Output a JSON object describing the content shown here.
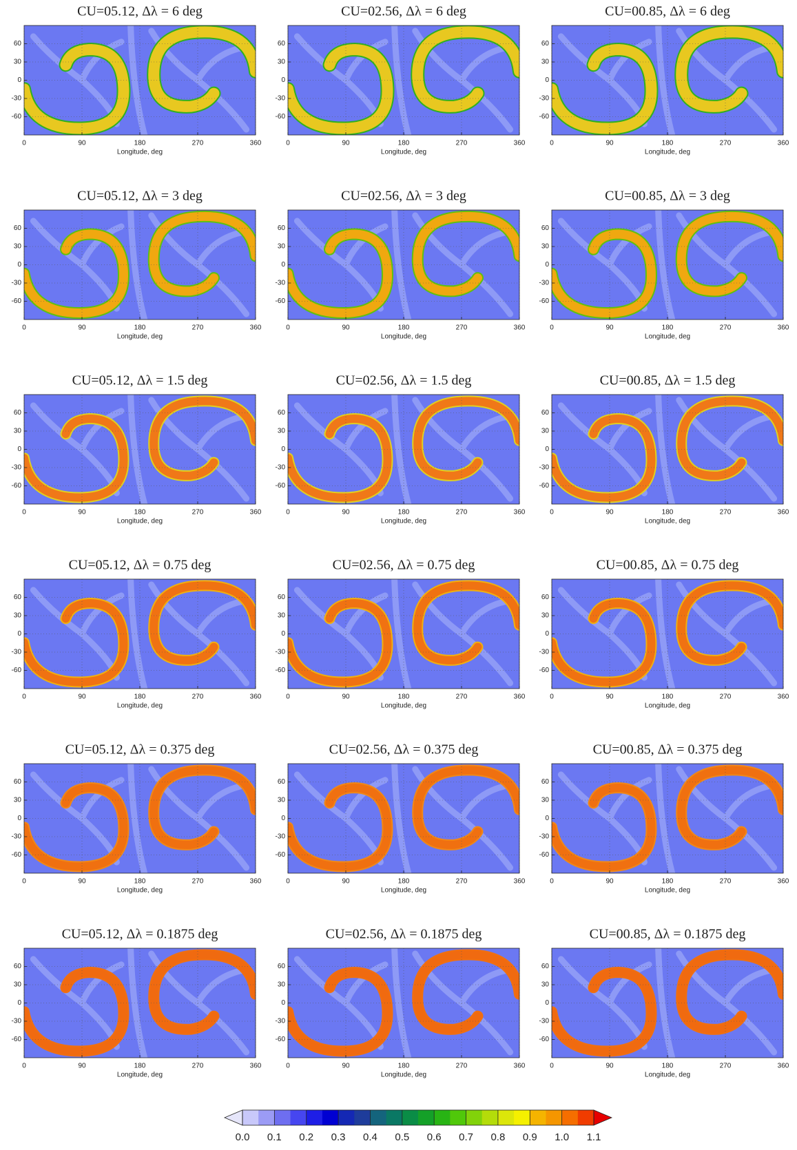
{
  "chart_data": [
    {
      "type": "heatmap",
      "title": "CU=05.12, Δλ = 6 deg",
      "xlabel": "Longitude, deg",
      "xlim": [
        0,
        360
      ],
      "xticks": [
        0,
        90,
        180,
        270,
        360
      ],
      "ylim": [
        -90,
        90
      ],
      "yticks": [
        -60,
        -30,
        0,
        30,
        60
      ],
      "grid": true
    },
    {
      "type": "heatmap",
      "title": "CU=02.56, Δλ = 6 deg",
      "xlabel": "Longitude, deg",
      "xlim": [
        0,
        360
      ],
      "xticks": [
        0,
        90,
        180,
        270,
        360
      ],
      "ylim": [
        -90,
        90
      ],
      "yticks": [
        -60,
        -30,
        0,
        30,
        60
      ],
      "grid": true
    },
    {
      "type": "heatmap",
      "title": "CU=00.85, Δλ = 6 deg",
      "xlabel": "Longitude, deg",
      "xlim": [
        0,
        360
      ],
      "xticks": [
        0,
        90,
        180,
        270,
        360
      ],
      "ylim": [
        -90,
        90
      ],
      "yticks": [
        -60,
        -30,
        0,
        30,
        60
      ],
      "grid": true
    },
    {
      "type": "heatmap",
      "title": "CU=05.12, Δλ = 3 deg",
      "xlabel": "Longitude, deg",
      "xlim": [
        0,
        360
      ],
      "xticks": [
        0,
        90,
        180,
        270,
        360
      ],
      "ylim": [
        -90,
        90
      ],
      "yticks": [
        -60,
        -30,
        0,
        30,
        60
      ],
      "grid": true
    },
    {
      "type": "heatmap",
      "title": "CU=02.56, Δλ = 3 deg",
      "xlabel": "Longitude, deg",
      "xlim": [
        0,
        360
      ],
      "xticks": [
        0,
        90,
        180,
        270,
        360
      ],
      "ylim": [
        -90,
        90
      ],
      "yticks": [
        -60,
        -30,
        0,
        30,
        60
      ],
      "grid": true
    },
    {
      "type": "heatmap",
      "title": "CU=00.85, Δλ = 3 deg",
      "xlabel": "Longitude, deg",
      "xlim": [
        0,
        360
      ],
      "xticks": [
        0,
        90,
        180,
        270,
        360
      ],
      "ylim": [
        -90,
        90
      ],
      "yticks": [
        -60,
        -30,
        0,
        30,
        60
      ],
      "grid": true
    },
    {
      "type": "heatmap",
      "title": "CU=05.12, Δλ = 1.5 deg",
      "xlabel": "Longitude, deg",
      "xlim": [
        0,
        360
      ],
      "xticks": [
        0,
        90,
        180,
        270,
        360
      ],
      "ylim": [
        -90,
        90
      ],
      "yticks": [
        -60,
        -30,
        0,
        30,
        60
      ],
      "grid": true
    },
    {
      "type": "heatmap",
      "title": "CU=02.56, Δλ = 1.5 deg",
      "xlabel": "Longitude, deg",
      "xlim": [
        0,
        360
      ],
      "xticks": [
        0,
        90,
        180,
        270,
        360
      ],
      "ylim": [
        -90,
        90
      ],
      "yticks": [
        -60,
        -30,
        0,
        30,
        60
      ],
      "grid": true
    },
    {
      "type": "heatmap",
      "title": "CU=00.85, Δλ = 1.5 deg",
      "xlabel": "Longitude, deg",
      "xlim": [
        0,
        360
      ],
      "xticks": [
        0,
        90,
        180,
        270,
        360
      ],
      "ylim": [
        -90,
        90
      ],
      "yticks": [
        -60,
        -30,
        0,
        30,
        60
      ],
      "grid": true
    },
    {
      "type": "heatmap",
      "title": "CU=05.12, Δλ = 0.75 deg",
      "xlabel": "Longitude, deg",
      "xlim": [
        0,
        360
      ],
      "xticks": [
        0,
        90,
        180,
        270,
        360
      ],
      "ylim": [
        -90,
        90
      ],
      "yticks": [
        -60,
        -30,
        0,
        30,
        60
      ],
      "grid": true
    },
    {
      "type": "heatmap",
      "title": "CU=02.56, Δλ = 0.75 deg",
      "xlabel": "Longitude, deg",
      "xlim": [
        0,
        360
      ],
      "xticks": [
        0,
        90,
        180,
        270,
        360
      ],
      "ylim": [
        -90,
        90
      ],
      "yticks": [
        -60,
        -30,
        0,
        30,
        60
      ],
      "grid": true
    },
    {
      "type": "heatmap",
      "title": "CU=00.85, Δλ = 0.75 deg",
      "xlabel": "Longitude, deg",
      "xlim": [
        0,
        360
      ],
      "xticks": [
        0,
        90,
        180,
        270,
        360
      ],
      "ylim": [
        -90,
        90
      ],
      "yticks": [
        -60,
        -30,
        0,
        30,
        60
      ],
      "grid": true
    },
    {
      "type": "heatmap",
      "title": "CU=05.12, Δλ = 0.375 deg",
      "xlabel": "Longitude, deg",
      "xlim": [
        0,
        360
      ],
      "xticks": [
        0,
        90,
        180,
        270,
        360
      ],
      "ylim": [
        -90,
        90
      ],
      "yticks": [
        -60,
        -30,
        0,
        30,
        60
      ],
      "grid": true
    },
    {
      "type": "heatmap",
      "title": "CU=02.56, Δλ = 0.375 deg",
      "xlabel": "Longitude, deg",
      "xlim": [
        0,
        360
      ],
      "xticks": [
        0,
        90,
        180,
        270,
        360
      ],
      "ylim": [
        -90,
        90
      ],
      "yticks": [
        -60,
        -30,
        0,
        30,
        60
      ],
      "grid": true
    },
    {
      "type": "heatmap",
      "title": "CU=00.85, Δλ = 0.375 deg",
      "xlabel": "Longitude, deg",
      "xlim": [
        0,
        360
      ],
      "xticks": [
        0,
        90,
        180,
        270,
        360
      ],
      "ylim": [
        -90,
        90
      ],
      "yticks": [
        -60,
        -30,
        0,
        30,
        60
      ],
      "grid": true
    },
    {
      "type": "heatmap",
      "title": "CU=05.12, Δλ = 0.1875 deg",
      "xlabel": "Longitude, deg",
      "xlim": [
        0,
        360
      ],
      "xticks": [
        0,
        90,
        180,
        270,
        360
      ],
      "ylim": [
        -90,
        90
      ],
      "yticks": [
        -60,
        -30,
        0,
        30,
        60
      ],
      "grid": true
    },
    {
      "type": "heatmap",
      "title": "CU=02.56, Δλ = 0.1875 deg",
      "xlabel": "Longitude, deg",
      "xlim": [
        0,
        360
      ],
      "xticks": [
        0,
        90,
        180,
        270,
        360
      ],
      "ylim": [
        -90,
        90
      ],
      "yticks": [
        -60,
        -30,
        0,
        30,
        60
      ],
      "grid": true
    },
    {
      "type": "heatmap",
      "title": "CU=00.85, Δλ = 0.1875 deg",
      "xlabel": "Longitude, deg",
      "xlim": [
        0,
        360
      ],
      "xticks": [
        0,
        90,
        180,
        270,
        360
      ],
      "ylim": [
        -90,
        90
      ],
      "yticks": [
        -60,
        -30,
        0,
        30,
        60
      ],
      "grid": true
    },
    {
      "type": "colorbar",
      "xlim": [
        0,
        1.1
      ],
      "xticks": [
        {
          "value": 0,
          "label": "0.0"
        },
        0.1,
        0.2,
        0.3,
        0.4,
        0.5,
        0.6,
        0.7,
        0.8,
        0.9,
        {
          "value": 1,
          "label": "1.0"
        },
        1.1
      ],
      "colors": [
        "#c8c8fa",
        "#9b9bf5",
        "#6e6ef0",
        "#4646f0",
        "#1e1ee6",
        "#0000d2",
        "#1428b4",
        "#1e3c9b",
        "#14647d",
        "#0a7864",
        "#0a8c46",
        "#14a028",
        "#28b414",
        "#50c80a",
        "#82d20a",
        "#b4dc0a",
        "#dce60a",
        "#f5f000",
        "#f5b400",
        "#f59600",
        "#f56e00",
        "#f03c00"
      ],
      "under_color": "#e6e6fa",
      "over_color": "#e60000"
    }
  ]
}
